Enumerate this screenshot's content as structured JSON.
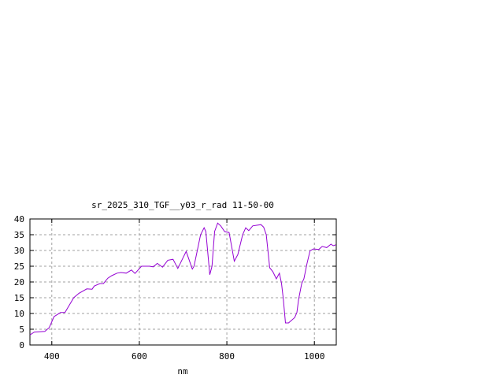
{
  "chart_data": {
    "type": "line",
    "title": "sr_2025_310_TGF__y03_r_rad 11-50-00",
    "xlabel": "nm",
    "ylabel": "",
    "xlim": [
      350,
      1050
    ],
    "ylim": [
      0,
      40
    ],
    "xticks": [
      400,
      600,
      800,
      1000
    ],
    "yticks": [
      0,
      5,
      10,
      15,
      20,
      25,
      30,
      35,
      40
    ],
    "grid": true,
    "line_color": "#9400d3",
    "series": [
      {
        "x": [
          350,
          360,
          384,
          394,
          405,
          420,
          430,
          450,
          462,
          480,
          492,
          497,
          510,
          518,
          528,
          537,
          549,
          558,
          570,
          582,
          590,
          605,
          623,
          632,
          641,
          653,
          665,
          677,
          688,
          707,
          721,
          725,
          740,
          748,
          752,
          761,
          766,
          772,
          779,
          786,
          795,
          805,
          811,
          817,
          825,
          836,
          843,
          850,
          859,
          868,
          878,
          884,
          890,
          898,
          905,
          913,
          920,
          925,
          929,
          934,
          941,
          955,
          960,
          964,
          971,
          976,
          983,
          990,
          998,
          1010,
          1018,
          1028,
          1038,
          1043,
          1049
        ],
        "y": [
          3.2,
          4.1,
          4.3,
          5.5,
          9,
          10.3,
          10.3,
          15,
          16.4,
          17.8,
          17.7,
          18.7,
          19.5,
          19.5,
          21.2,
          22,
          22.8,
          23,
          22.8,
          23.8,
          22.7,
          25,
          25,
          24.8,
          25.9,
          24.7,
          26.9,
          27.2,
          24.3,
          29.7,
          24.1,
          25,
          35,
          37.2,
          36,
          22.3,
          25,
          36,
          38.7,
          37.8,
          36,
          35.7,
          31.2,
          26.6,
          28.7,
          35,
          37.2,
          36.3,
          37.8,
          38,
          38.2,
          37.4,
          35,
          24.5,
          23.3,
          21,
          22.8,
          19.5,
          14.5,
          7,
          7,
          8.7,
          10.3,
          14.5,
          19.5,
          21,
          25.8,
          29.9,
          30.5,
          30.3,
          31.3,
          30.9,
          32,
          31.5,
          31.8
        ]
      }
    ]
  }
}
